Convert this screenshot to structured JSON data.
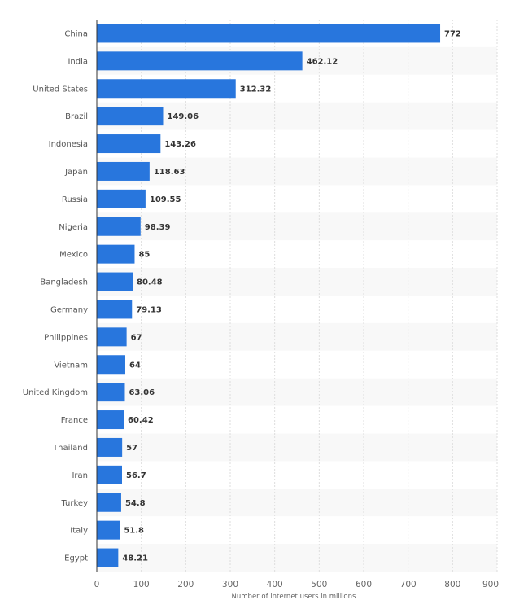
{
  "chart_data": {
    "type": "bar",
    "orientation": "horizontal",
    "categories": [
      "China",
      "India",
      "United States",
      "Brazil",
      "Indonesia",
      "Japan",
      "Russia",
      "Nigeria",
      "Mexico",
      "Bangladesh",
      "Germany",
      "Philippines",
      "Vietnam",
      "United Kingdom",
      "France",
      "Thailand",
      "Iran",
      "Turkey",
      "Italy",
      "Egypt"
    ],
    "values": [
      772,
      462.12,
      312.32,
      149.06,
      143.26,
      118.63,
      109.55,
      98.39,
      85,
      80.48,
      79.13,
      67,
      64,
      63.06,
      60.42,
      57,
      56.7,
      54.8,
      51.8,
      48.21
    ],
    "value_labels": [
      "772",
      "462.12",
      "312.32",
      "149.06",
      "143.26",
      "118.63",
      "109.55",
      "98.39",
      "85",
      "80.48",
      "79.13",
      "67",
      "64",
      "63.06",
      "60.42",
      "57",
      "56.7",
      "54.8",
      "51.8",
      "48.21"
    ],
    "xlabel": "Number of internet users in millions",
    "ylabel": "",
    "xlim": [
      0,
      900
    ],
    "xticks": [
      "0",
      "100",
      "200",
      "300",
      "400",
      "500",
      "600",
      "700",
      "800",
      "900"
    ],
    "grid": true,
    "bar_color": "#2876dd",
    "stripe_color": "#f8f8f8"
  }
}
